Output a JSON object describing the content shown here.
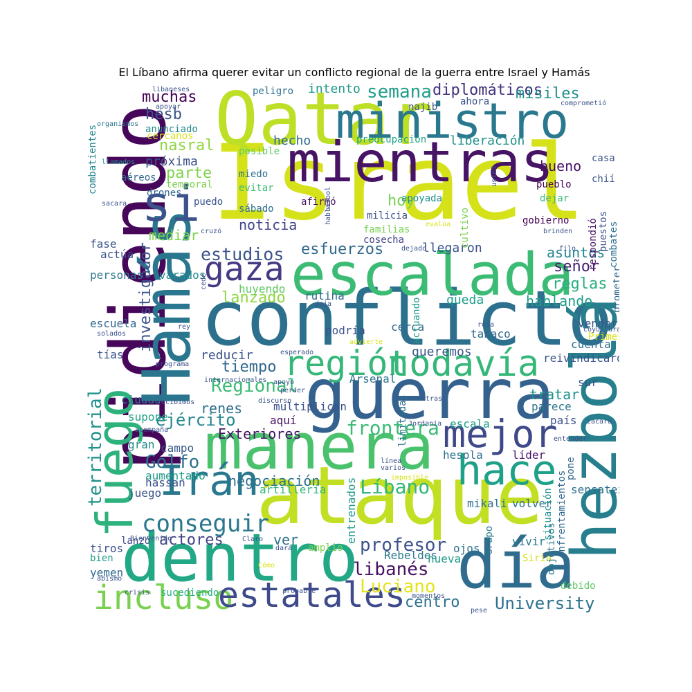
{
  "title": "El Líbano afirma querer evitar un conflicto regional de la guerra entre Israel y Hamás",
  "words": [
    {
      "text": "Israel",
      "color": "#d5e21a"
    },
    {
      "text": "pidiendo",
      "color": "#46075a"
    },
    {
      "text": "Qatar",
      "color": "#bddf26"
    },
    {
      "text": "ministro",
      "color": "#2a788e"
    },
    {
      "text": "mientras",
      "color": "#471365"
    },
    {
      "text": "Hamás",
      "color": "#2a768e"
    },
    {
      "text": "conflicto",
      "color": "#2d708e"
    },
    {
      "text": "escalada",
      "color": "#3cbb75"
    },
    {
      "text": "guerra",
      "color": "#34618d"
    },
    {
      "text": "hezbolá",
      "color": "#277f8e"
    },
    {
      "text": "ataque",
      "color": "#c2df23"
    },
    {
      "text": "manera",
      "color": "#4ac16d"
    },
    {
      "text": "dentro",
      "color": "#22a884"
    },
    {
      "text": "día",
      "color": "#2f6c8e"
    },
    {
      "text": "fuego",
      "color": "#2db27d"
    },
    {
      "text": "región",
      "color": "#35b779"
    },
    {
      "text": "todavía",
      "color": "#35b779"
    },
    {
      "text": "mejor",
      "color": "#3e4989"
    },
    {
      "text": "hace",
      "color": "#1fa088"
    },
    {
      "text": "Irán",
      "color": "#2a788e"
    },
    {
      "text": "si",
      "color": "#3b528b"
    },
    {
      "text": "gaza",
      "color": "#443983"
    },
    {
      "text": "incluso",
      "color": "#7ad151"
    },
    {
      "text": "estatales",
      "color": "#3e4a89"
    },
    {
      "text": "territorial",
      "color": "#21918c"
    },
    {
      "text": "investigador",
      "color": "#3b528b"
    },
    {
      "text": "conseguir",
      "color": "#2a788e"
    },
    {
      "text": "Regional",
      "color": "#3cbb75"
    },
    {
      "text": "estudios",
      "color": "#3b528b"
    },
    {
      "text": "esfuerzos",
      "color": "#31688e"
    },
    {
      "text": "lanzado",
      "color": "#8fd744"
    },
    {
      "text": "tiempo",
      "color": "#31688e"
    },
    {
      "text": "ejército",
      "color": "#24868e"
    },
    {
      "text": "frontera",
      "color": "#3cbb75"
    },
    {
      "text": "Golfo",
      "color": "#2c728e"
    },
    {
      "text": "Líbano",
      "color": "#35b779"
    },
    {
      "text": "profesor",
      "color": "#3b528b"
    },
    {
      "text": "libanés",
      "color": "#471164"
    },
    {
      "text": "Luciano",
      "color": "#e3e418"
    },
    {
      "text": "University",
      "color": "#2c728e"
    },
    {
      "text": "centro",
      "color": "#2d708e"
    },
    {
      "text": "actores",
      "color": "#414487"
    },
    {
      "text": "ver",
      "color": "#2d708e"
    },
    {
      "text": "hoy",
      "color": "#7ad151"
    },
    {
      "text": "noticia",
      "color": "#414487"
    },
    {
      "text": "muchas",
      "color": "#440154"
    },
    {
      "text": "hesb",
      "color": "#39568c"
    },
    {
      "text": "nasral",
      "color": "#90d743"
    },
    {
      "text": "próxima",
      "color": "#3b528b"
    },
    {
      "text": "parte",
      "color": "#7fd34e"
    },
    {
      "text": "semana",
      "color": "#1f9e89"
    },
    {
      "text": "diplomáticos",
      "color": "#46337e"
    },
    {
      "text": "misiles",
      "color": "#21918c"
    },
    {
      "text": "intento",
      "color": "#1f9a8a"
    },
    {
      "text": "hecho",
      "color": "#31688e"
    },
    {
      "text": "liberación",
      "color": "#21918c"
    },
    {
      "text": "bueno",
      "color": "#471365"
    },
    {
      "text": "señor",
      "color": "#482173"
    },
    {
      "text": "reglas",
      "color": "#29af7f"
    },
    {
      "text": "hablando",
      "color": "#1e9c89"
    },
    {
      "text": "tratar",
      "color": "#20928c"
    },
    {
      "text": "Exteriores",
      "color": "#471365"
    },
    {
      "text": "negociación",
      "color": "#2d708e"
    },
    {
      "text": "renes",
      "color": "#2d708e"
    },
    {
      "text": "reducir",
      "color": "#3b528b"
    },
    {
      "text": "queremos",
      "color": "#39568c"
    },
    {
      "text": "asuntos",
      "color": "#24868e"
    },
    {
      "text": "combatientes",
      "color": "#24868e"
    },
    {
      "text": "llegaron",
      "color": "#3b528b"
    },
    {
      "text": "queda",
      "color": "#1f9e89"
    },
    {
      "text": "mediar",
      "color": "#7fd34e"
    },
    {
      "text": "varados",
      "color": "#238a8d"
    },
    {
      "text": "personas",
      "color": "#2a788e"
    },
    {
      "text": "actúa",
      "color": "#3b528b"
    },
    {
      "text": "fase",
      "color": "#39568c"
    },
    {
      "text": "escuela",
      "color": "#31688e"
    },
    {
      "text": "tías",
      "color": "#3b528b"
    },
    {
      "text": "ciudad",
      "color": "#2c728e"
    },
    {
      "text": "supone",
      "color": "#20a386"
    },
    {
      "text": "gran",
      "color": "#238a8d"
    },
    {
      "text": "campo",
      "color": "#39568c"
    },
    {
      "text": "aumentado",
      "color": "#1f9e89"
    },
    {
      "text": "juego",
      "color": "#3b528b"
    },
    {
      "text": "hassan",
      "color": "#3b528b"
    },
    {
      "text": "artillería",
      "color": "#35b779"
    },
    {
      "text": "entrenados",
      "color": "#1f9a8a"
    },
    {
      "text": "amplio",
      "color": "#7ad151"
    },
    {
      "text": "Rebeldes",
      "color": "#2a788e"
    },
    {
      "text": "sucediendo",
      "color": "#27ad81"
    },
    {
      "text": "tiros",
      "color": "#3b528b"
    },
    {
      "text": "bien",
      "color": "#1f9a8a"
    },
    {
      "text": "yemen",
      "color": "#31688e"
    },
    {
      "text": "lanzó",
      "color": "#414487"
    },
    {
      "text": "volver",
      "color": "#2c728e"
    },
    {
      "text": "vivir",
      "color": "#2a788e"
    },
    {
      "text": "mikali",
      "color": "#2d708e"
    },
    {
      "text": "ojos",
      "color": "#2c728e"
    },
    {
      "text": "nueva",
      "color": "#1f9e89"
    },
    {
      "text": "Siria",
      "color": "#d8e219"
    },
    {
      "text": "debido",
      "color": "#5ec962"
    },
    {
      "text": "Grupo",
      "color": "#2a788e"
    },
    {
      "text": "objetivos",
      "color": "#2a788e"
    },
    {
      "text": "enfrentamientos",
      "color": "#31688e"
    },
    {
      "text": "situación",
      "color": "#21918c"
    },
    {
      "text": "pone",
      "color": "#31688e"
    },
    {
      "text": "sensatez",
      "color": "#2d708e"
    },
    {
      "text": "líder",
      "color": "#471365"
    },
    {
      "text": "hesola",
      "color": "#2d708e"
    },
    {
      "text": "escala",
      "color": "#1f9e89"
    },
    {
      "text": "país",
      "color": "#3b528b"
    },
    {
      "text": "parece",
      "color": "#2c728e"
    },
    {
      "text": "sur",
      "color": "#3b528b"
    },
    {
      "text": "cuenta",
      "color": "#2c728e"
    },
    {
      "text": "Primer",
      "color": "#d8e219"
    },
    {
      "text": "vender",
      "color": "#3b528b"
    },
    {
      "text": "reivindicaron",
      "color": "#3b528b"
    },
    {
      "text": "tabaco",
      "color": "#31688e"
    },
    {
      "text": "cerca",
      "color": "#31688e"
    },
    {
      "text": "podría",
      "color": "#3b528b"
    },
    {
      "text": "actuando",
      "color": "#1f9e89"
    },
    {
      "text": "Arsenal",
      "color": "#2c728e"
    },
    {
      "text": "limitadas",
      "color": "#2d708e"
    },
    {
      "text": "aquí",
      "color": "#471365"
    },
    {
      "text": "multiplican",
      "color": "#3b528b"
    },
    {
      "text": "rutina",
      "color": "#31688e"
    },
    {
      "text": "huyendo",
      "color": "#5ec962"
    },
    {
      "text": "sábado",
      "color": "#2d708e"
    },
    {
      "text": "evitar",
      "color": "#3cbb75"
    },
    {
      "text": "miedo",
      "color": "#2d708e"
    },
    {
      "text": "posible",
      "color": "#5ec962"
    },
    {
      "text": "afirmó",
      "color": "#471365"
    },
    {
      "text": "apoyada",
      "color": "#21918c"
    },
    {
      "text": "milicia",
      "color": "#3b528b"
    },
    {
      "text": "familias",
      "color": "#7ad151"
    },
    {
      "text": "cosecha",
      "color": "#414487"
    },
    {
      "text": "cultivo",
      "color": "#7ad151"
    },
    {
      "text": "pueblo",
      "color": "#440154"
    },
    {
      "text": "dejar",
      "color": "#3cbb75"
    },
    {
      "text": "gobierno",
      "color": "#440154"
    },
    {
      "text": "respondió",
      "color": "#471365"
    },
    {
      "text": "puestos",
      "color": "#3b528b"
    },
    {
      "text": "combates",
      "color": "#2c728e"
    },
    {
      "text": "prometer",
      "color": "#31688e"
    },
    {
      "text": "chií",
      "color": "#3b528b"
    },
    {
      "text": "casa",
      "color": "#3b528b"
    },
    {
      "text": "preocupación",
      "color": "#20a386"
    },
    {
      "text": "najib",
      "color": "#3b528b"
    },
    {
      "text": "ahora",
      "color": "#3b528b"
    },
    {
      "text": "peligro",
      "color": "#2c728e"
    },
    {
      "text": "anunciado",
      "color": "#238a8d"
    },
    {
      "text": "cercanos",
      "color": "#d8e219"
    },
    {
      "text": "aéreos",
      "color": "#31688e"
    },
    {
      "text": "drones",
      "color": "#31688e"
    },
    {
      "text": "puedo",
      "color": "#3b528b"
    },
    {
      "text": "temporal",
      "color": "#7ad151"
    },
    {
      "text": "libaneses",
      "color": "#3b528b"
    },
    {
      "text": "apoyar",
      "color": "#3b528b"
    },
    {
      "text": "organismos",
      "color": "#2c728e"
    },
    {
      "text": "llamados",
      "color": "#21918c"
    },
    {
      "text": "sacara",
      "color": "#3b528b"
    },
    {
      "text": "cruzó",
      "color": "#3b528b"
    },
    {
      "text": "comprometió",
      "color": "#3b528b"
    },
    {
      "text": "usted",
      "color": "#3b528b"
    },
    {
      "text": "hisbol",
      "color": "#3b528b"
    },
    {
      "text": "habla",
      "color": "#3b528b"
    },
    {
      "text": "evalúa",
      "color": "#d8e219"
    },
    {
      "text": "brinden",
      "color": "#3b528b"
    },
    {
      "text": "filo",
      "color": "#3b528b"
    },
    {
      "text": "dejado",
      "color": "#3b528b"
    },
    {
      "text": "cede",
      "color": "#3b528b"
    },
    {
      "text": "doja",
      "color": "#3b528b"
    },
    {
      "text": "roja",
      "color": "#3b528b"
    },
    {
      "text": "coyuntura",
      "color": "#3b528b"
    },
    {
      "text": "solados",
      "color": "#3b528b"
    },
    {
      "text": "rey",
      "color": "#3b528b"
    },
    {
      "text": "programa",
      "color": "#3b528b"
    },
    {
      "text": "esperado",
      "color": "#3b528b"
    },
    {
      "text": "advierte",
      "color": "#d8e219"
    },
    {
      "text": "internacionales",
      "color": "#3b528b"
    },
    {
      "text": "apoyo",
      "color": "#3b528b"
    },
    {
      "text": "discurso",
      "color": "#3b528b"
    },
    {
      "text": "recibimos",
      "color": "#3b528b"
    },
    {
      "text": "perder",
      "color": "#3b528b"
    },
    {
      "text": "tras",
      "color": "#3b528b"
    },
    {
      "text": "acompaña",
      "color": "#3b528b"
    },
    {
      "text": "Jordania",
      "color": "#3b528b"
    },
    {
      "text": "zacara",
      "color": "#3b528b"
    },
    {
      "text": "entender",
      "color": "#3b528b"
    },
    {
      "text": "línea",
      "color": "#3b528b"
    },
    {
      "text": "varios",
      "color": "#3b528b"
    },
    {
      "text": "imposible",
      "color": "#d8e219"
    },
    {
      "text": "Bienvenido",
      "color": "#3b528b"
    },
    {
      "text": "Claro",
      "color": "#3b528b"
    },
    {
      "text": "dará",
      "color": "#3b528b"
    },
    {
      "text": "Cómo",
      "color": "#d8e219"
    },
    {
      "text": "abismo",
      "color": "#3b528b"
    },
    {
      "text": "crisis",
      "color": "#3b528b"
    },
    {
      "text": "probable",
      "color": "#3b528b"
    },
    {
      "text": "momentos",
      "color": "#3b528b"
    },
    {
      "text": "pese",
      "color": "#3b528b"
    }
  ]
}
